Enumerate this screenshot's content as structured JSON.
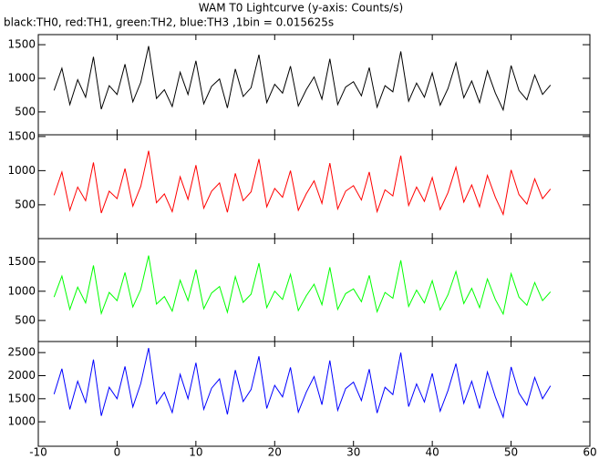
{
  "chart_data": {
    "type": "line",
    "title": "WAM T0 Lightcurve (y-axis: Counts/s)",
    "subtitle": "black:TH0, red:TH1, green:TH2, blue:TH3 ,1bin = 0.015625s",
    "xlim": [
      -10,
      60
    ],
    "xticks": [
      -10,
      0,
      10,
      20,
      30,
      40,
      50,
      60
    ],
    "x": [
      -8,
      -7,
      -6,
      -5,
      -4,
      -3,
      -2,
      -1,
      0,
      1,
      2,
      3,
      4,
      5,
      6,
      7,
      8,
      9,
      10,
      11,
      12,
      13,
      14,
      15,
      16,
      17,
      18,
      19,
      20,
      21,
      22,
      23,
      24,
      25,
      26,
      27,
      28,
      29,
      30,
      31,
      32,
      33,
      34,
      35,
      36,
      37,
      38,
      39,
      40,
      41,
      42,
      43,
      44,
      45,
      46,
      47,
      48,
      49,
      50,
      51,
      52,
      53,
      54,
      55
    ],
    "panels": [
      {
        "color": "#000000",
        "ylim": [
          160,
          1650
        ],
        "yticks": [
          500,
          1000,
          1500
        ],
        "values": [
          820,
          1150,
          610,
          980,
          720,
          1320,
          540,
          890,
          760,
          1210,
          650,
          940,
          1480,
          700,
          830,
          580,
          1090,
          760,
          1260,
          620,
          880,
          990,
          560,
          1140,
          730,
          860,
          1350,
          640,
          910,
          780,
          1180,
          590,
          830,
          1020,
          690,
          1290,
          610,
          870,
          950,
          740,
          1160,
          570,
          890,
          800,
          1400,
          660,
          930,
          720,
          1080,
          600,
          850,
          1230,
          710,
          960,
          640,
          1110,
          780,
          530,
          1190,
          820,
          680,
          1050,
          760,
          900
        ]
      },
      {
        "color": "#ff0000",
        "ylim": [
          5,
          1525
        ],
        "yticks": [
          500,
          1000,
          1500
        ],
        "values": [
          640,
          980,
          420,
          760,
          560,
          1120,
          380,
          700,
          590,
          1030,
          480,
          770,
          1290,
          530,
          660,
          400,
          910,
          580,
          1080,
          450,
          700,
          820,
          390,
          960,
          560,
          690,
          1170,
          470,
          740,
          610,
          1000,
          420,
          660,
          850,
          520,
          1110,
          440,
          700,
          780,
          570,
          980,
          400,
          720,
          630,
          1220,
          490,
          760,
          550,
          900,
          430,
          680,
          1050,
          540,
          790,
          470,
          930,
          610,
          360,
          1010,
          650,
          510,
          880,
          590,
          730
        ]
      },
      {
        "color": "#00ff00",
        "ylim": [
          140,
          1900
        ],
        "yticks": [
          500,
          1000,
          1500
        ],
        "values": [
          900,
          1260,
          690,
          1070,
          800,
          1440,
          620,
          980,
          840,
          1320,
          730,
          1030,
          1610,
          780,
          910,
          660,
          1190,
          840,
          1370,
          700,
          970,
          1080,
          640,
          1250,
          810,
          950,
          1480,
          720,
          1000,
          860,
          1290,
          670,
          920,
          1120,
          770,
          1410,
          690,
          960,
          1040,
          820,
          1270,
          650,
          980,
          880,
          1530,
          740,
          1020,
          800,
          1180,
          680,
          940,
          1340,
          790,
          1050,
          720,
          1210,
          860,
          610,
          1300,
          900,
          760,
          1150,
          840,
          990
        ]
      },
      {
        "color": "#0000ff",
        "ylim": [
          470,
          2740
        ],
        "yticks": [
          1000,
          1500,
          2000,
          2500
        ],
        "values": [
          1600,
          2150,
          1270,
          1880,
          1420,
          2350,
          1130,
          1750,
          1500,
          2200,
          1320,
          1830,
          2600,
          1390,
          1640,
          1200,
          2030,
          1500,
          2280,
          1270,
          1730,
          1930,
          1160,
          2120,
          1440,
          1700,
          2420,
          1290,
          1790,
          1540,
          2180,
          1210,
          1640,
          1980,
          1370,
          2330,
          1250,
          1720,
          1860,
          1460,
          2140,
          1190,
          1750,
          1590,
          2500,
          1330,
          1820,
          1430,
          2050,
          1230,
          1680,
          2260,
          1400,
          1880,
          1290,
          2080,
          1540,
          1100,
          2190,
          1620,
          1360,
          1960,
          1500,
          1780
        ]
      }
    ]
  }
}
